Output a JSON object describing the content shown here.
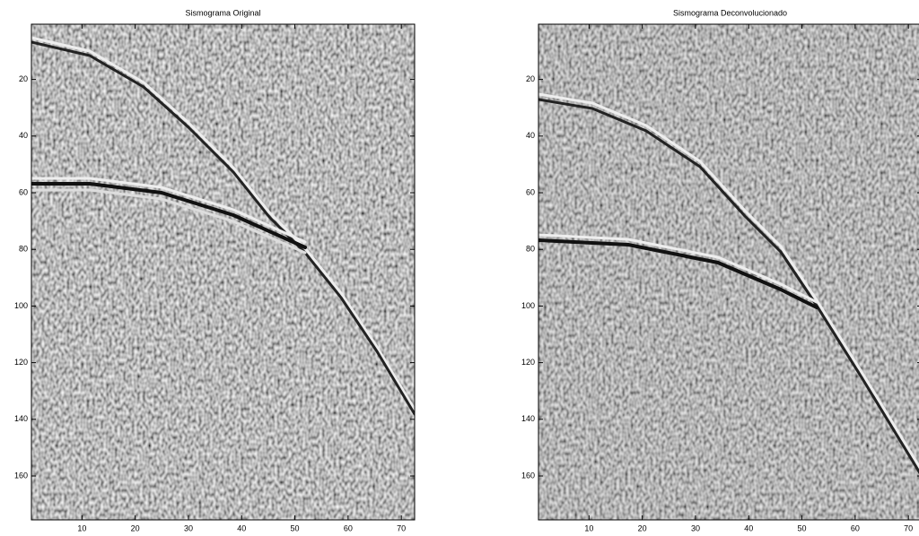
{
  "chart_data": [
    {
      "type": "image",
      "title": "Sismograma Original",
      "xlim": [
        0.5,
        72.5
      ],
      "ylim": [
        0.5,
        175.5
      ],
      "yreverse": true,
      "xticks": [
        10,
        20,
        30,
        40,
        50,
        60,
        70
      ],
      "yticks": [
        20,
        40,
        60,
        80,
        100,
        120,
        140,
        160
      ]
    },
    {
      "type": "image",
      "title": "Sismograma Deconvolucionado",
      "xlim": [
        0.5,
        72.5
      ],
      "ylim": [
        0.5,
        175.5
      ],
      "yreverse": true,
      "xticks": [
        10,
        20,
        30,
        40,
        50,
        60,
        70
      ],
      "yticks": [
        20,
        40,
        60,
        80,
        100,
        120,
        140,
        160
      ]
    }
  ]
}
